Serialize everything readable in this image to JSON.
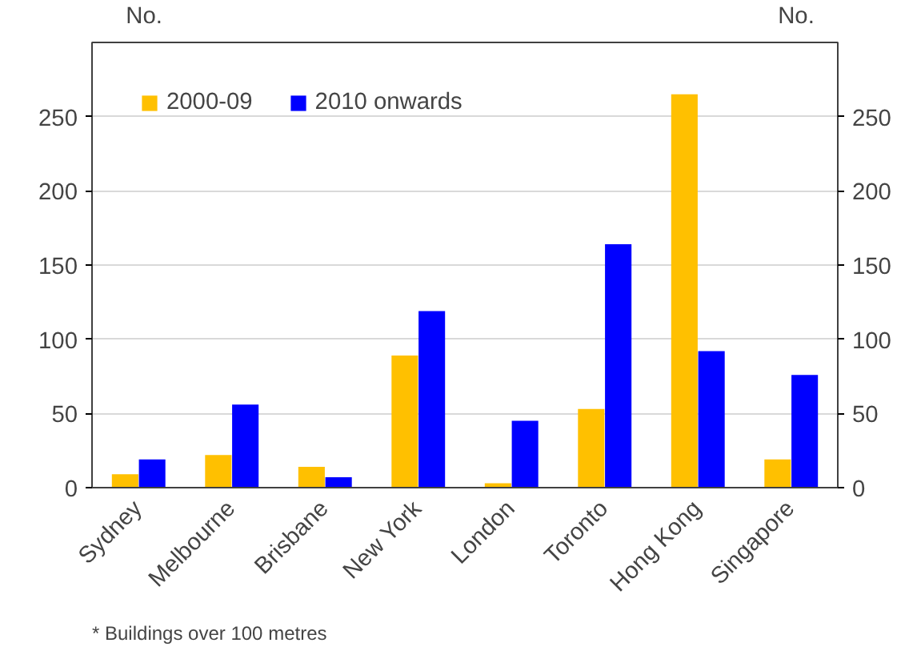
{
  "chart_data": {
    "type": "bar",
    "categories": [
      "Sydney",
      "Melbourne",
      "Brisbane",
      "New York",
      "London",
      "Toronto",
      "Hong Kong",
      "Singapore"
    ],
    "series": [
      {
        "name": "2000-09",
        "color": "#ffc000",
        "values": [
          9,
          22,
          14,
          89,
          3,
          53,
          265,
          19
        ]
      },
      {
        "name": "2010 onwards",
        "color": "#0000ff",
        "values": [
          19,
          56,
          7,
          119,
          45,
          164,
          92,
          76
        ]
      }
    ],
    "ylabel": "No.",
    "y2label": "No.",
    "ylim": [
      0,
      300
    ],
    "yticks": [
      0,
      50,
      100,
      150,
      200,
      250
    ],
    "y2lim": [
      0,
      300
    ],
    "y2ticks": [
      0,
      50,
      100,
      150,
      200,
      250
    ],
    "grid": "y",
    "legend": "top left",
    "annotations": [
      "* Buildings over 100 metres"
    ]
  }
}
